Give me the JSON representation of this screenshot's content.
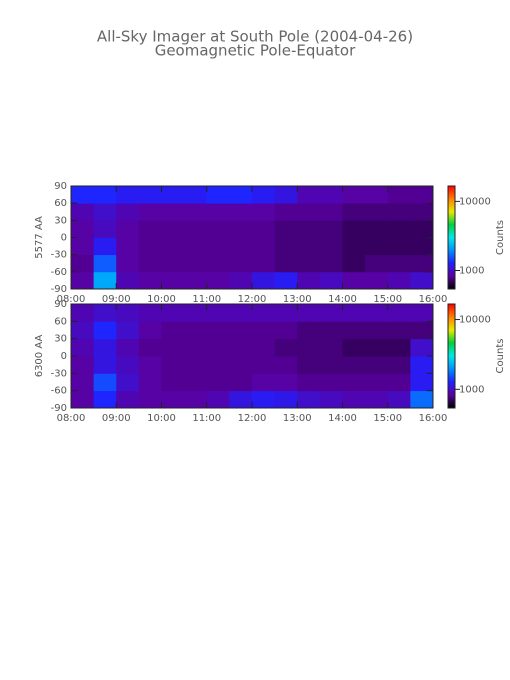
{
  "chart_data": [
    {
      "type": "heatmap",
      "title": "All-Sky Imager at South Pole (2004-04-26)",
      "subtitle": "Geomagnetic Pole-Equator",
      "ylabel": "5577 AA",
      "zlabel": "Counts",
      "xbins": [
        8,
        8.5,
        9,
        9.5,
        10,
        10.5,
        11,
        11.5,
        12,
        12.5,
        13,
        13.5,
        14,
        14.5,
        15,
        15.5,
        16
      ],
      "ybins": [
        -90,
        -60,
        -30,
        0,
        30,
        60,
        90
      ],
      "z": [
        [
          850,
          2200,
          900,
          850,
          850,
          850,
          850,
          900,
          1100,
          1200,
          900,
          950,
          850,
          850,
          900,
          1000
        ],
        [
          800,
          1600,
          850,
          800,
          800,
          800,
          800,
          800,
          800,
          750,
          750,
          750,
          700,
          750,
          750,
          750
        ],
        [
          850,
          1200,
          850,
          800,
          800,
          800,
          800,
          800,
          800,
          750,
          750,
          750,
          700,
          700,
          700,
          700
        ],
        [
          850,
          950,
          850,
          800,
          800,
          800,
          800,
          800,
          800,
          750,
          750,
          750,
          700,
          700,
          700,
          700
        ],
        [
          900,
          1000,
          900,
          850,
          850,
          850,
          850,
          850,
          850,
          800,
          800,
          800,
          750,
          750,
          750,
          750
        ],
        [
          1300,
          1300,
          1200,
          1200,
          1200,
          1200,
          1300,
          1300,
          1200,
          1100,
          900,
          900,
          850,
          850,
          800,
          800
        ]
      ],
      "xlim": [
        8,
        16
      ],
      "xticks": [
        {
          "value": 8,
          "label": "08:00"
        },
        {
          "value": 9,
          "label": "09:00"
        },
        {
          "value": 10,
          "label": "10:00"
        },
        {
          "value": 11,
          "label": "11:00"
        },
        {
          "value": 12,
          "label": "12:00"
        },
        {
          "value": 13,
          "label": "13:00"
        },
        {
          "value": 14,
          "label": "14:00"
        },
        {
          "value": 15,
          "label": "15:00"
        },
        {
          "value": 16,
          "label": "16:00"
        }
      ],
      "ylim": [
        -90,
        90
      ],
      "yticks": [
        90,
        60,
        30,
        0,
        -30,
        -60,
        -90
      ],
      "zlim": [
        540,
        16700
      ],
      "zticks": [
        1000,
        10000
      ],
      "zlog": true,
      "colorscale": [
        "#000000",
        "#5a00a0",
        "#2020ff",
        "#0090ff",
        "#00e8e8",
        "#00d040",
        "#e8e800",
        "#ff8000",
        "#ff0000"
      ]
    },
    {
      "type": "heatmap",
      "ylabel": "6300 AA",
      "zlabel": "Counts",
      "xbins": [
        8,
        8.5,
        9,
        9.5,
        10,
        10.5,
        11,
        11.5,
        12,
        12.5,
        13,
        13.5,
        14,
        14.5,
        15,
        15.5,
        16
      ],
      "ybins": [
        -90,
        -60,
        -30,
        0,
        30,
        60,
        90
      ],
      "z": [
        [
          850,
          1300,
          900,
          850,
          850,
          850,
          900,
          1100,
          1200,
          1150,
          1000,
          950,
          900,
          900,
          950,
          1700
        ],
        [
          850,
          1500,
          1000,
          850,
          800,
          800,
          800,
          800,
          850,
          850,
          800,
          800,
          800,
          800,
          800,
          1200
        ],
        [
          850,
          1100,
          950,
          850,
          800,
          800,
          800,
          800,
          800,
          800,
          750,
          750,
          750,
          750,
          750,
          1200
        ],
        [
          900,
          1100,
          900,
          800,
          800,
          800,
          800,
          800,
          800,
          750,
          750,
          750,
          700,
          700,
          700,
          1000
        ],
        [
          950,
          1300,
          1000,
          850,
          800,
          800,
          800,
          800,
          800,
          800,
          750,
          750,
          750,
          750,
          750,
          750
        ],
        [
          900,
          1000,
          950,
          900,
          900,
          900,
          900,
          900,
          900,
          900,
          900,
          900,
          900,
          900,
          900,
          900
        ]
      ],
      "xlim": [
        8,
        16
      ],
      "xticks": [
        {
          "value": 8,
          "label": "08:00"
        },
        {
          "value": 9,
          "label": "09:00"
        },
        {
          "value": 10,
          "label": "10:00"
        },
        {
          "value": 11,
          "label": "11:00"
        },
        {
          "value": 12,
          "label": "12:00"
        },
        {
          "value": 13,
          "label": "13:00"
        },
        {
          "value": 14,
          "label": "14:00"
        },
        {
          "value": 15,
          "label": "15:00"
        },
        {
          "value": 16,
          "label": "16:00"
        }
      ],
      "ylim": [
        -90,
        90
      ],
      "yticks": [
        90,
        60,
        30,
        0,
        -30,
        -60,
        -90
      ],
      "zlim": [
        540,
        16700
      ],
      "zticks": [
        1000,
        10000
      ],
      "zlog": true,
      "colorscale": [
        "#000000",
        "#5a00a0",
        "#2020ff",
        "#0090ff",
        "#00e8e8",
        "#00d040",
        "#e8e800",
        "#ff8000",
        "#ff0000"
      ]
    }
  ]
}
